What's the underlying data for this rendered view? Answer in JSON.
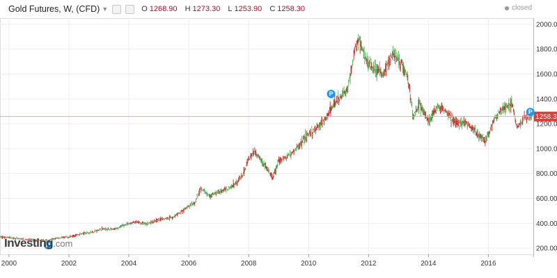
{
  "header": {
    "title": "Gold Futures, W, (CFD)",
    "dropdown_icon": "chevron-down-icon",
    "buttons": [
      "settings-icon",
      "compare-icon"
    ],
    "ohlc": [
      {
        "key": "O",
        "value": "1268.90"
      },
      {
        "key": "H",
        "value": "1273.30"
      },
      {
        "key": "L",
        "value": "1253.90"
      },
      {
        "key": "C",
        "value": "1258.30"
      }
    ]
  },
  "status": {
    "text": "closed"
  },
  "watermark": {
    "brand": "Investing",
    "suffix": ".com"
  },
  "colors": {
    "up": "#4caf50",
    "down": "#c62828",
    "last_price_line": "#f4a59a",
    "last_price_label_bg": "#e53935",
    "pivot_marker": "#2196f3",
    "grid": "#eeeeee"
  },
  "chart_data": {
    "type": "line",
    "title": "",
    "xlabel": "",
    "ylabel": "",
    "xlim": [
      1999.7,
      2017.5
    ],
    "ylim": [
      150,
      2050
    ],
    "grid": true,
    "y_axis_side": "right",
    "yticks": [
      "200.00",
      "400.00",
      "600.00",
      "800.00",
      "1000.00",
      "1200.00",
      "1400.00",
      "1600.00",
      "1800.00",
      "2000.00"
    ],
    "xticks": [
      "2000",
      "2002",
      "2004",
      "2006",
      "2008",
      "2010",
      "2012",
      "2014",
      "2016"
    ],
    "last_price": {
      "value": 1258.3,
      "label": "1258.30"
    },
    "pivot_markers": [
      {
        "x": 2001.3,
        "y": 225,
        "label": "P"
      },
      {
        "x": 2010.75,
        "y": 1440,
        "label": "P"
      },
      {
        "x": 2017.4,
        "y": 1295,
        "label": "P"
      }
    ],
    "series": [
      {
        "x": [
          1999.7,
          2000.0,
          2000.3,
          2000.6,
          2001.0,
          2001.3,
          2001.6,
          2002.0,
          2002.4,
          2002.8,
          2003.1,
          2003.5,
          2003.9,
          2004.2,
          2004.6,
          2005.0,
          2005.5,
          2005.9,
          2006.2,
          2006.4,
          2006.7,
          2007.0,
          2007.4,
          2007.8,
          2008.0,
          2008.2,
          2008.5,
          2008.8,
          2009.0,
          2009.3,
          2009.6,
          2009.9,
          2010.2,
          2010.5,
          2010.8,
          2011.0,
          2011.3,
          2011.55,
          2011.7,
          2011.9,
          2012.2,
          2012.5,
          2012.8,
          2013.1,
          2013.3,
          2013.5,
          2013.7,
          2014.0,
          2014.3,
          2014.6,
          2014.9,
          2015.2,
          2015.5,
          2015.9,
          2016.2,
          2016.5,
          2016.8,
          2016.95,
          2017.2,
          2017.45
        ],
        "values": [
          290,
          285,
          275,
          270,
          265,
          262,
          280,
          290,
          315,
          330,
          355,
          350,
          390,
          410,
          395,
          430,
          450,
          520,
          560,
          680,
          620,
          650,
          690,
          780,
          920,
          980,
          880,
          760,
          900,
          940,
          1000,
          1100,
          1150,
          1220,
          1340,
          1400,
          1480,
          1800,
          1880,
          1720,
          1650,
          1600,
          1760,
          1680,
          1580,
          1250,
          1360,
          1220,
          1330,
          1300,
          1200,
          1220,
          1160,
          1060,
          1230,
          1330,
          1360,
          1160,
          1240,
          1258
        ]
      }
    ]
  }
}
